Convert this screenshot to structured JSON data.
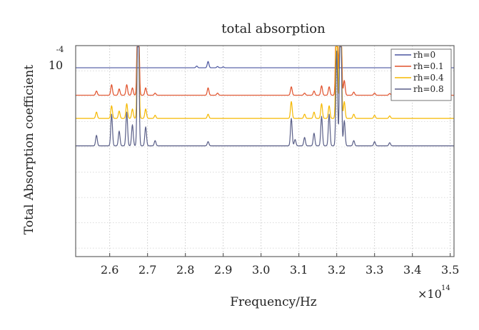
{
  "chart_data": {
    "type": "line",
    "title": "total absorption",
    "xlabel": "Frequency/Hz",
    "ylabel": "Total Absorption coefficient",
    "x_multiplier": "×10",
    "x_multiplier_exp": "14",
    "y_tick_label": "10",
    "y_tick_exp": "-4",
    "xlim": [
      2.51,
      3.51
    ],
    "xticks": [
      "2.6",
      "2.7",
      "2.8",
      "2.9",
      "3.0",
      "3.1",
      "3.2",
      "3.3",
      "3.4",
      "3.5"
    ],
    "grid": true,
    "y_scale": "log",
    "legend_position": "top-right",
    "series": [
      {
        "name": "rh=0",
        "color": "#4a55a0",
        "baseline": 0.895,
        "peaks": [
          [
            2.86,
            0.03
          ],
          [
            2.83,
            0.008
          ],
          [
            2.885,
            0.006
          ],
          [
            2.9,
            0.004
          ]
        ]
      },
      {
        "name": "rh=0.1",
        "color": "#e0502a",
        "baseline": 0.765,
        "peaks": [
          [
            2.565,
            0.02
          ],
          [
            2.605,
            0.05
          ],
          [
            2.625,
            0.03
          ],
          [
            2.645,
            0.05
          ],
          [
            2.66,
            0.035
          ],
          [
            2.675,
            0.8
          ],
          [
            2.695,
            0.035
          ],
          [
            2.72,
            0.01
          ],
          [
            2.86,
            0.035
          ],
          [
            2.885,
            0.01
          ],
          [
            3.08,
            0.04
          ],
          [
            3.115,
            0.01
          ],
          [
            3.14,
            0.02
          ],
          [
            3.16,
            0.045
          ],
          [
            3.18,
            0.04
          ],
          [
            3.2,
            0.78
          ],
          [
            3.21,
            0.9
          ],
          [
            3.22,
            0.07
          ],
          [
            3.245,
            0.015
          ],
          [
            3.3,
            0.01
          ],
          [
            3.34,
            0.008
          ]
        ]
      },
      {
        "name": "rh=0.4",
        "color": "#f5b800",
        "baseline": 0.655,
        "peaks": [
          [
            2.565,
            0.03
          ],
          [
            2.605,
            0.06
          ],
          [
            2.625,
            0.035
          ],
          [
            2.645,
            0.07
          ],
          [
            2.66,
            0.045
          ],
          [
            2.675,
            0.7
          ],
          [
            2.695,
            0.045
          ],
          [
            2.72,
            0.015
          ],
          [
            2.86,
            0.02
          ],
          [
            3.08,
            0.08
          ],
          [
            3.115,
            0.02
          ],
          [
            3.14,
            0.03
          ],
          [
            3.16,
            0.07
          ],
          [
            3.18,
            0.06
          ],
          [
            3.2,
            0.72
          ],
          [
            3.21,
            0.85
          ],
          [
            3.22,
            0.08
          ],
          [
            3.245,
            0.02
          ],
          [
            3.3,
            0.015
          ],
          [
            3.34,
            0.012
          ]
        ]
      },
      {
        "name": "rh=0.8",
        "color": "#5a5f88",
        "baseline": 0.525,
        "peaks": [
          [
            2.565,
            0.05
          ],
          [
            2.605,
            0.15
          ],
          [
            2.625,
            0.07
          ],
          [
            2.645,
            0.16
          ],
          [
            2.66,
            0.1
          ],
          [
            2.675,
            0.76
          ],
          [
            2.695,
            0.09
          ],
          [
            2.72,
            0.025
          ],
          [
            2.86,
            0.02
          ],
          [
            3.08,
            0.13
          ],
          [
            3.09,
            0.03
          ],
          [
            3.115,
            0.04
          ],
          [
            3.14,
            0.06
          ],
          [
            3.16,
            0.14
          ],
          [
            3.18,
            0.15
          ],
          [
            3.2,
            0.45
          ],
          [
            3.21,
            0.92
          ],
          [
            3.22,
            0.12
          ],
          [
            3.245,
            0.025
          ],
          [
            3.3,
            0.02
          ],
          [
            3.34,
            0.015
          ]
        ]
      }
    ]
  }
}
